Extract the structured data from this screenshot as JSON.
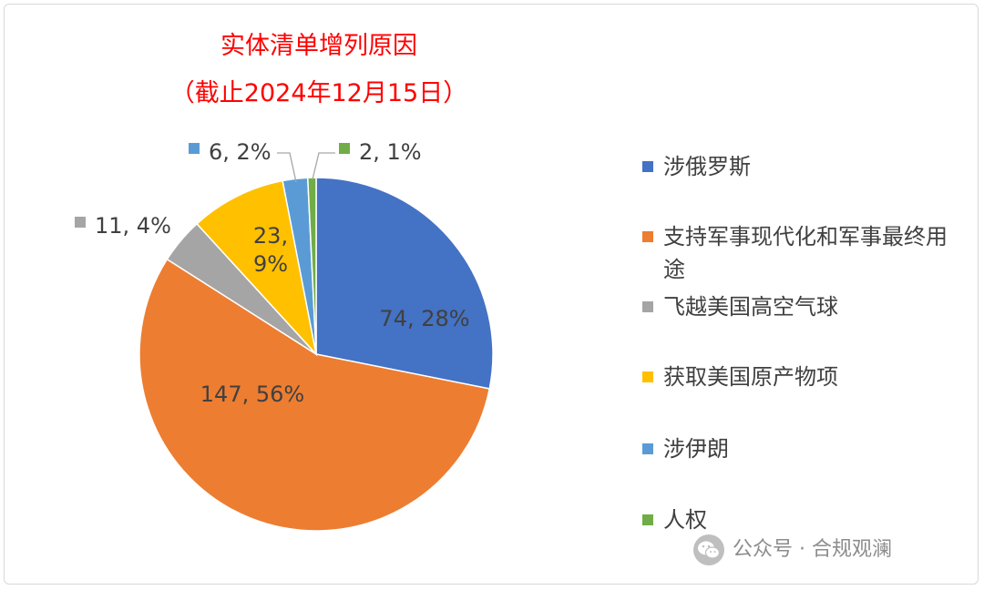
{
  "chart_data": {
    "type": "pie",
    "title": "实体清单增列原因",
    "subtitle": "（截止2024年12月15日）",
    "legend_position": "right",
    "series": [
      {
        "name": "涉俄罗斯",
        "value": 74,
        "percent": "28%",
        "label": "74, 28%",
        "color": "#4472c4"
      },
      {
        "name": "支持军事现代化和军事最终用途",
        "value": 147,
        "percent": "56%",
        "label": "147, 56%",
        "color": "#ed7d31"
      },
      {
        "name": "飞越美国高空气球",
        "value": 11,
        "percent": "4%",
        "label": "11, 4%",
        "color": "#a5a5a5"
      },
      {
        "name": "获取美国原产物项",
        "value": 23,
        "percent": "9%",
        "label": "23, 9%",
        "color": "#ffc000"
      },
      {
        "name": "涉伊朗",
        "value": 6,
        "percent": "2%",
        "label": "6, 2%",
        "color": "#5b9bd5"
      },
      {
        "name": "人权",
        "value": 2,
        "percent": "1%",
        "label": "2, 1%",
        "color": "#70ad47"
      }
    ]
  },
  "watermark": {
    "text": "公众号 · 合规观澜",
    "icon": "wechat-icon"
  }
}
